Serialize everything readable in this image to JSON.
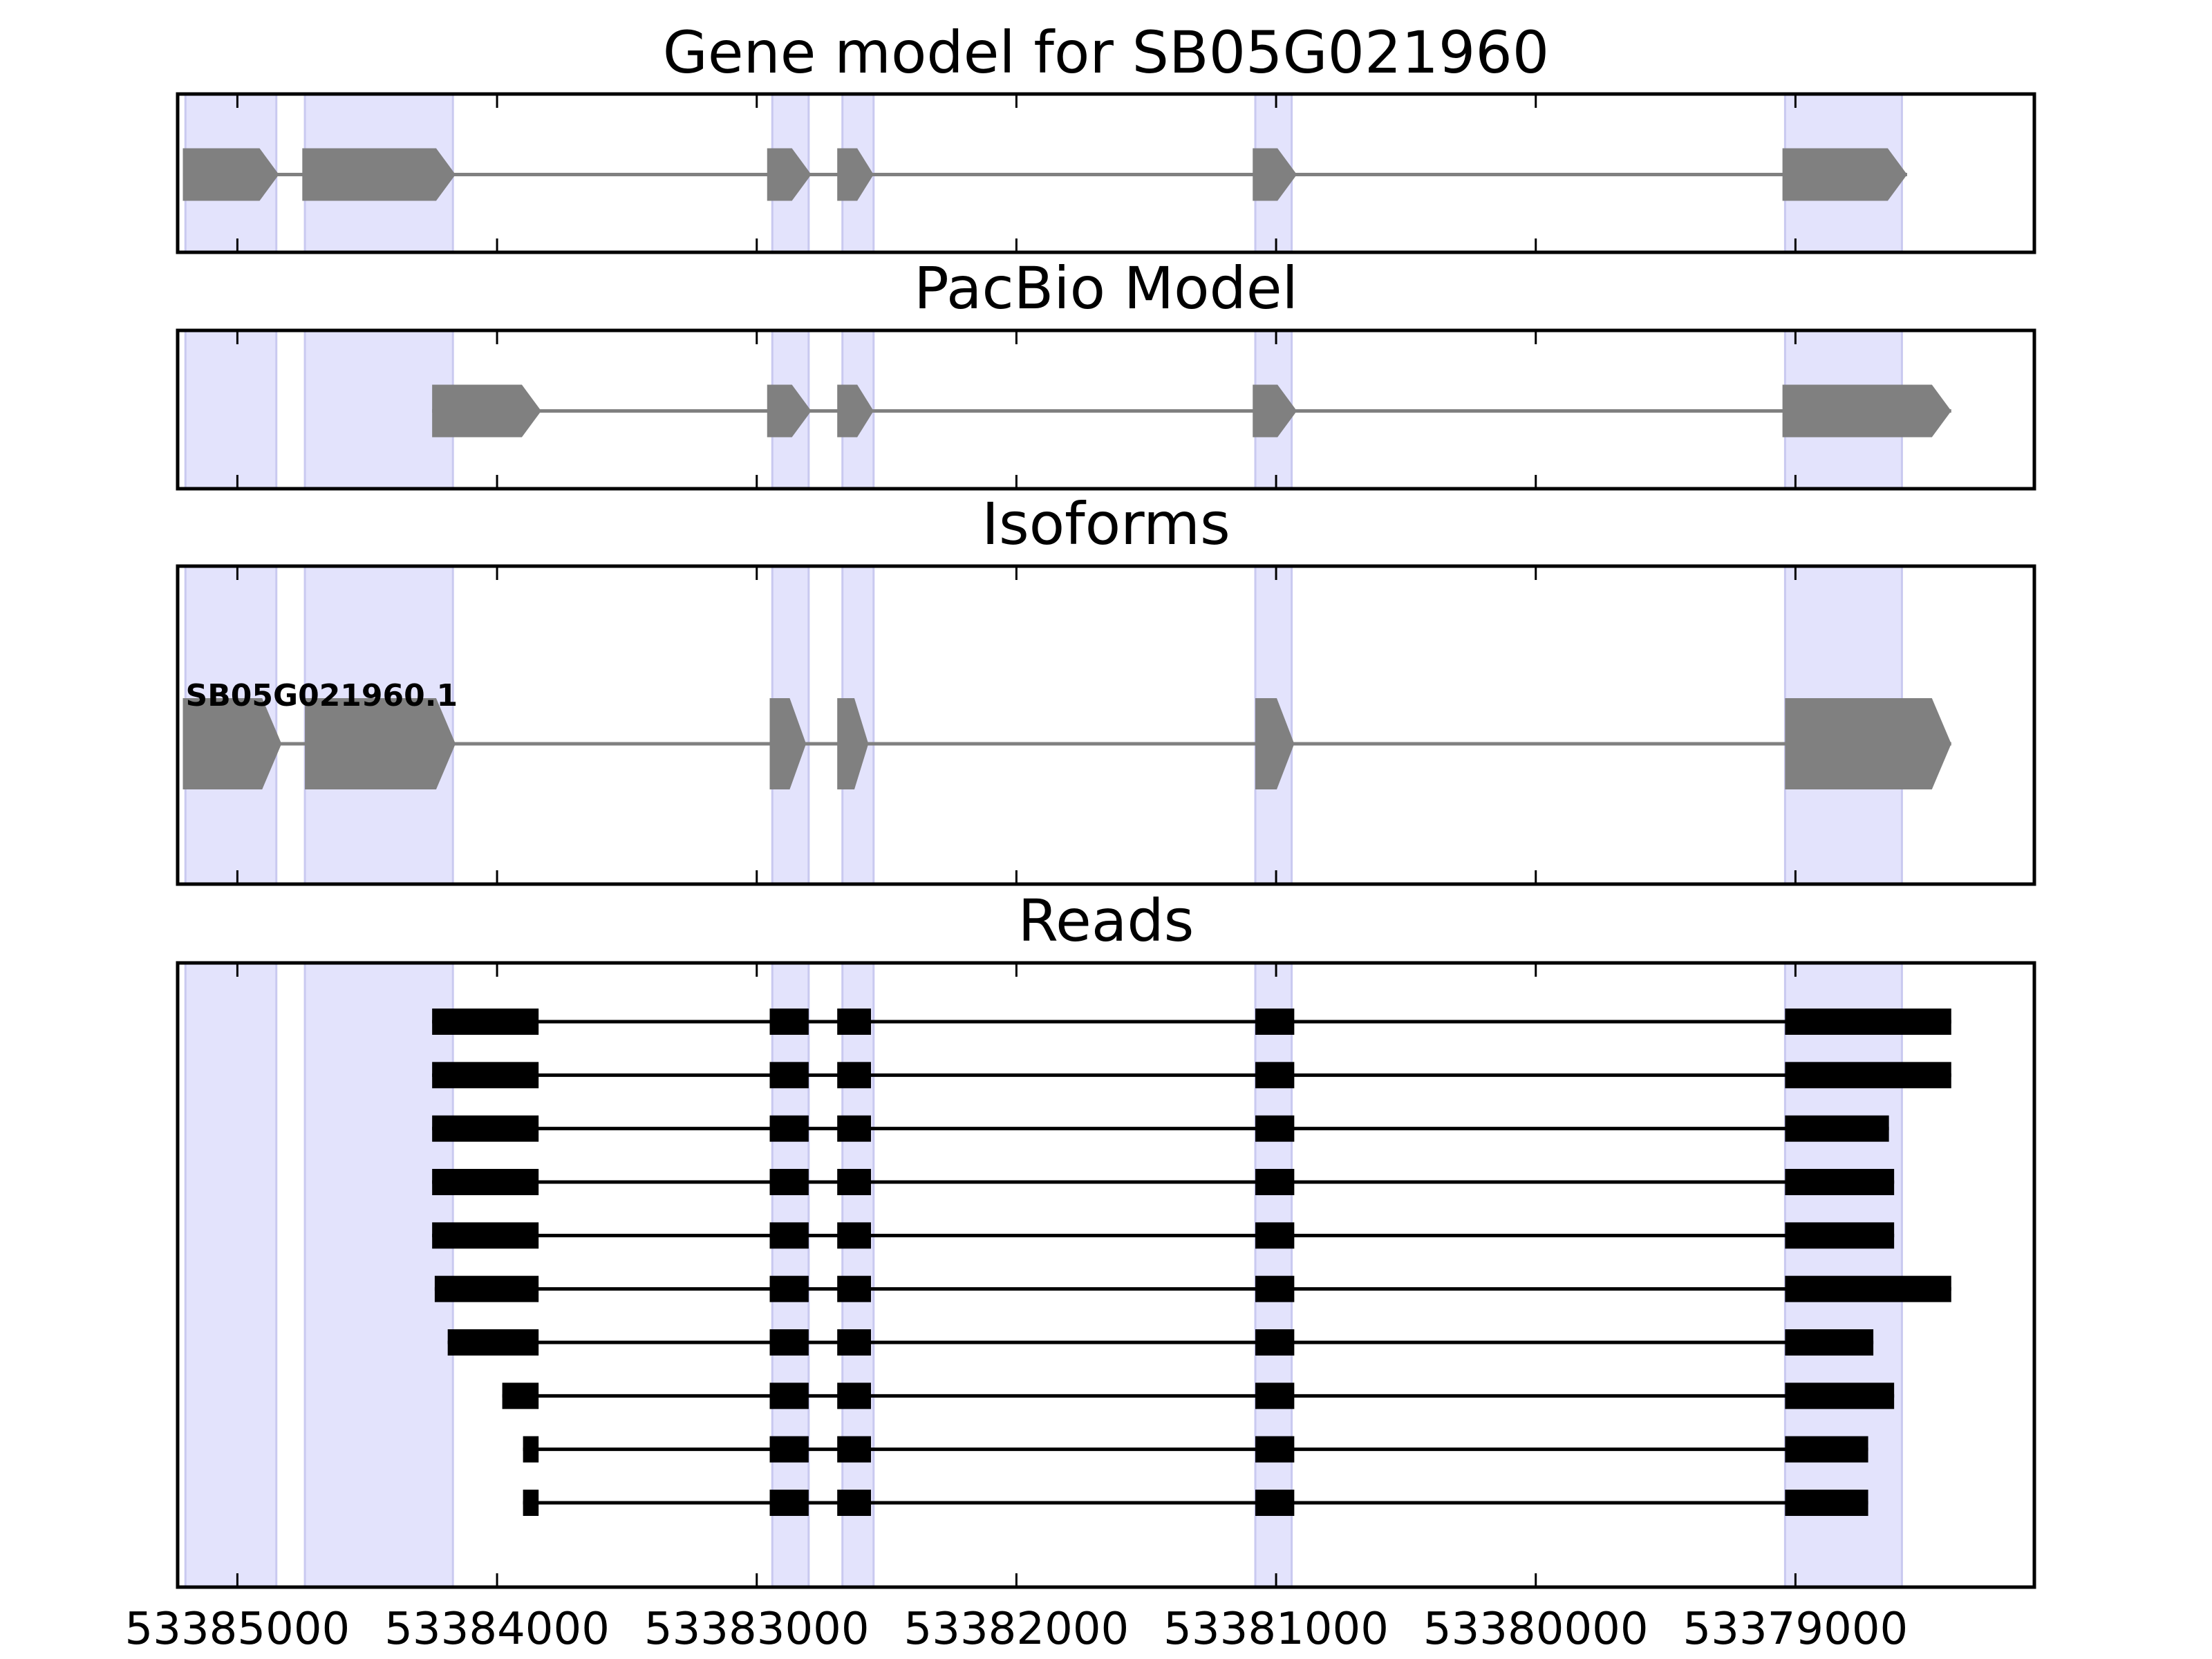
{
  "chart_data": {
    "type": "gene-model-track",
    "xaxis": {
      "direction": "descending",
      "range": [
        53385230,
        53378080
      ],
      "ticks": [
        53385000,
        53384000,
        53383000,
        53382000,
        53381000,
        53380000,
        53379000
      ],
      "tick_labels": [
        "53385000",
        "53384000",
        "53383000",
        "53382000",
        "53381000",
        "53380000",
        "53379000"
      ]
    },
    "strand": "-",
    "highlight_color": "#e3e3fc",
    "shaded_exon_regions": [
      [
        53385200,
        53384850
      ],
      [
        53384740,
        53384170
      ],
      [
        53382940,
        53382800
      ],
      [
        53382670,
        53382550
      ],
      [
        53381080,
        53380940
      ],
      [
        53379040,
        53378590
      ]
    ],
    "panels": [
      {
        "title": "Gene model for SB05G021960",
        "feature_color": "#808080",
        "transcripts": [
          {
            "label": "",
            "exons": [
              [
                53385210,
                53384840
              ],
              [
                53384750,
                53384160
              ],
              [
                53382960,
                53382790
              ],
              [
                53382690,
                53382550
              ],
              [
                53381090,
                53380920
              ],
              [
                53379050,
                53378570
              ]
            ]
          }
        ]
      },
      {
        "title": "PacBio Model",
        "feature_color": "#808080",
        "transcripts": [
          {
            "label": "",
            "exons": [
              [
                53384250,
                53383830
              ],
              [
                53382960,
                53382790
              ],
              [
                53382690,
                53382550
              ],
              [
                53381090,
                53380920
              ],
              [
                53379050,
                53378400
              ]
            ]
          }
        ]
      },
      {
        "title": "Isoforms",
        "feature_color": "#808080",
        "transcripts": [
          {
            "label": "SB05G021960.1",
            "exons": [
              [
                53385210,
                53384830
              ],
              [
                53384740,
                53384160
              ],
              [
                53382950,
                53382810
              ],
              [
                53382690,
                53382570
              ],
              [
                53381080,
                53380930
              ],
              [
                53379040,
                53378400
              ]
            ]
          }
        ]
      },
      {
        "title": "Reads",
        "feature_color": "#000000",
        "reads": [
          [
            [
              53384250,
              53383840
            ],
            [
              53382950,
              53382800
            ],
            [
              53382690,
              53382560
            ],
            [
              53381080,
              53380930
            ],
            [
              53379040,
              53378400
            ]
          ],
          [
            [
              53384250,
              53383840
            ],
            [
              53382950,
              53382800
            ],
            [
              53382690,
              53382560
            ],
            [
              53381080,
              53380930
            ],
            [
              53379040,
              53378400
            ]
          ],
          [
            [
              53384250,
              53383840
            ],
            [
              53382950,
              53382800
            ],
            [
              53382690,
              53382560
            ],
            [
              53381080,
              53380930
            ],
            [
              53379040,
              53378640
            ]
          ],
          [
            [
              53384250,
              53383840
            ],
            [
              53382950,
              53382800
            ],
            [
              53382690,
              53382560
            ],
            [
              53381080,
              53380930
            ],
            [
              53379040,
              53378620
            ]
          ],
          [
            [
              53384250,
              53383840
            ],
            [
              53382950,
              53382800
            ],
            [
              53382690,
              53382560
            ],
            [
              53381080,
              53380930
            ],
            [
              53379040,
              53378620
            ]
          ],
          [
            [
              53384240,
              53383840
            ],
            [
              53382950,
              53382800
            ],
            [
              53382690,
              53382560
            ],
            [
              53381080,
              53380930
            ],
            [
              53379040,
              53378400
            ]
          ],
          [
            [
              53384190,
              53383840
            ],
            [
              53382950,
              53382800
            ],
            [
              53382690,
              53382560
            ],
            [
              53381080,
              53380930
            ],
            [
              53379040,
              53378700
            ]
          ],
          [
            [
              53383980,
              53383840
            ],
            [
              53382950,
              53382800
            ],
            [
              53382690,
              53382560
            ],
            [
              53381080,
              53380930
            ],
            [
              53379040,
              53378620
            ]
          ],
          [
            [
              53383900,
              53383840
            ],
            [
              53382950,
              53382800
            ],
            [
              53382690,
              53382560
            ],
            [
              53381080,
              53380930
            ],
            [
              53379040,
              53378720
            ]
          ],
          [
            [
              53383900,
              53383840
            ],
            [
              53382950,
              53382800
            ],
            [
              53382690,
              53382560
            ],
            [
              53381080,
              53380930
            ],
            [
              53379040,
              53378720
            ]
          ]
        ]
      }
    ]
  }
}
